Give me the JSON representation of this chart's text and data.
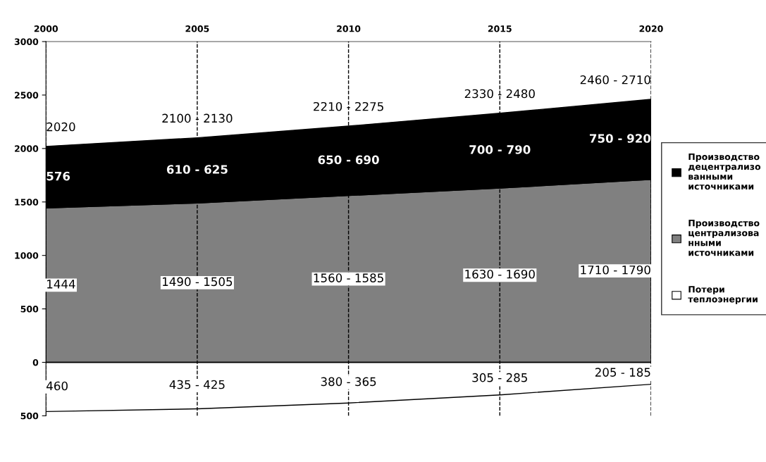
{
  "chart_data": {
    "type": "area",
    "stacked": true,
    "x": [
      2000,
      2005,
      2010,
      2015,
      2020
    ],
    "xlim": [
      2000,
      2020
    ],
    "xticks": [
      2000,
      2005,
      2010,
      2015,
      2020
    ],
    "ylim": [
      -500,
      3000
    ],
    "yticks": [
      3000,
      2500,
      2000,
      1500,
      1000,
      500,
      0,
      {
        "value": -500,
        "label": "500"
      }
    ],
    "grid": "x",
    "legend": "right",
    "series": [
      {
        "name": "Производство\nцентрализова\nнными\nисточниками",
        "color": "#808080",
        "values": [
          1444,
          1490,
          1560,
          1630,
          1710
        ]
      },
      {
        "name": "Производство\nдецентрализо\nванными\nисточниками",
        "color": "#000000",
        "values": [
          576,
          610,
          650,
          700,
          750
        ]
      },
      {
        "name": "Потери\nтеплоэнергии",
        "type": "line",
        "color": "#000000",
        "values": [
          -460,
          -435,
          -380,
          -305,
          -205
        ]
      }
    ],
    "totals": [
      "2020",
      "2100 - 2130",
      "2210 - 2275",
      "2330 - 2480",
      "2460 - 2710"
    ],
    "annotations": [
      "1444",
      "1490 - 1505",
      "1560 - 1585",
      "1630 - 1690",
      "1710 - 1790",
      "576",
      "610 - 625",
      "650 - 690",
      "700 - 790",
      "750 - 920",
      "460",
      "435 - 425",
      "380 - 365",
      "305 - 285",
      "205 - 185"
    ]
  }
}
